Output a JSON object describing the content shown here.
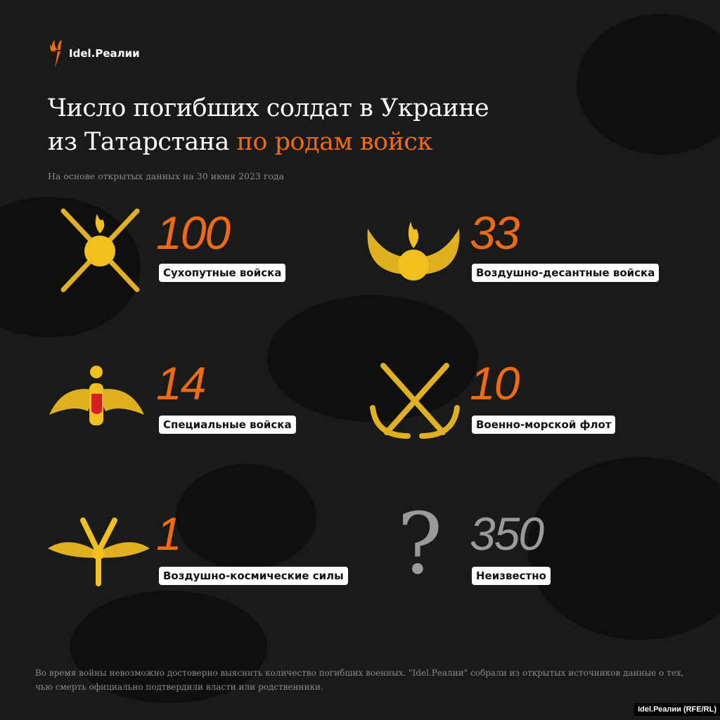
{
  "brand": {
    "logo_text": "Idel.Реалии",
    "accent_color": "#f06b0f"
  },
  "title": {
    "line1": "Число погибших солдат в Украине",
    "line2_plain": "из Татарстана ",
    "line2_accent": "по родам войск"
  },
  "subtitle": "На основе открытых данных на 30 июня 2023 года",
  "items": [
    {
      "value": "100",
      "label": "Сухопутные войска",
      "icon": "ground-forces-emblem"
    },
    {
      "value": "33",
      "label": "Воздушно-десантные войска",
      "icon": "airborne-emblem"
    },
    {
      "value": "14",
      "label": "Специальные войска",
      "icon": "double-headed-eagle-emblem"
    },
    {
      "value": "10",
      "label": "Военно-морской флот",
      "icon": "crossed-anchors-emblem"
    },
    {
      "value": "1",
      "label": "Воздушно-космические силы",
      "icon": "aerospace-emblem"
    },
    {
      "value": "350",
      "label": "Неизвестно",
      "icon": "question-mark"
    }
  ],
  "footer": "Во время войны невозможно достоверно выяснить количество погибших военных. \"Idel.Реалии\" собрали из открытых источников данные о тех, чью смерть официально подтвердили власти или родственники.",
  "credit": "Idel.Реалии (RFE/RL)"
}
